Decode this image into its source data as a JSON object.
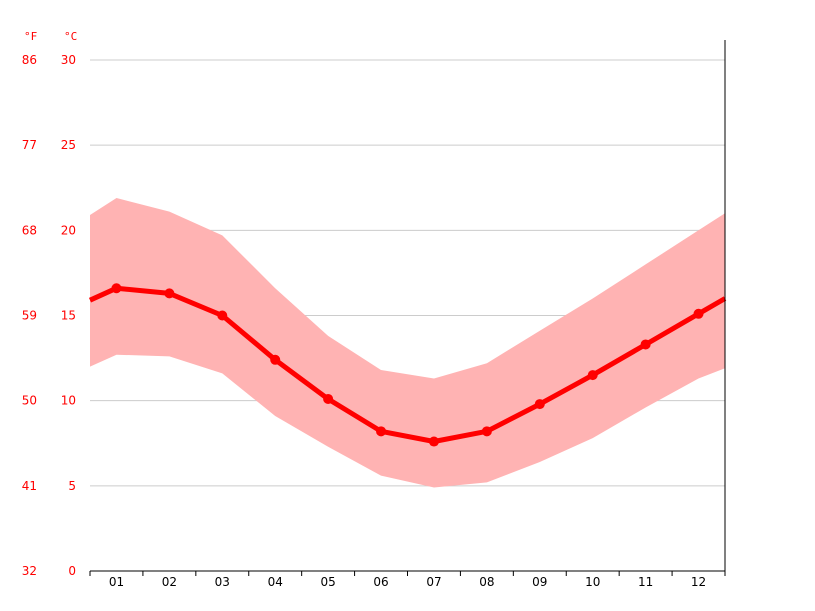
{
  "chart_data": {
    "type": "line",
    "units": {
      "fahrenheit": "°F",
      "celsius": "°C"
    },
    "categories": [
      "01",
      "02",
      "03",
      "04",
      "05",
      "06",
      "07",
      "08",
      "09",
      "10",
      "11",
      "12"
    ],
    "y_celsius_ticks": [
      "0",
      "5",
      "10",
      "15",
      "20",
      "25",
      "30"
    ],
    "y_fahrenheit_ticks": [
      "32",
      "41",
      "50",
      "59",
      "68",
      "77",
      "86"
    ],
    "ylim": [
      0,
      30
    ],
    "grid": true,
    "series": [
      {
        "values": [
          16.6,
          16.3,
          15.0,
          12.4,
          10.1,
          8.2,
          7.6,
          8.2,
          9.8,
          11.5,
          13.3,
          15.1
        ]
      }
    ],
    "band_max": [
      21.9,
      21.1,
      19.7,
      16.6,
      13.8,
      11.8,
      11.3,
      12.2,
      14.1,
      16.0,
      18.0,
      20.0
    ],
    "band_min": [
      12.7,
      12.6,
      11.6,
      9.1,
      7.3,
      5.6,
      4.9,
      5.2,
      6.4,
      7.8,
      9.6,
      11.3
    ],
    "edge_start": {
      "mean": 15.9,
      "max": 20.9,
      "min": 12.0
    },
    "edge_end": {
      "mean": 16.0,
      "max": 21.0,
      "min": 11.9
    },
    "colors": {
      "mean_line": "#ff0000",
      "band": "#ffb3b3",
      "grid": "#cccccc",
      "axis_text": "#ff0000",
      "category_text": "#000000"
    }
  }
}
